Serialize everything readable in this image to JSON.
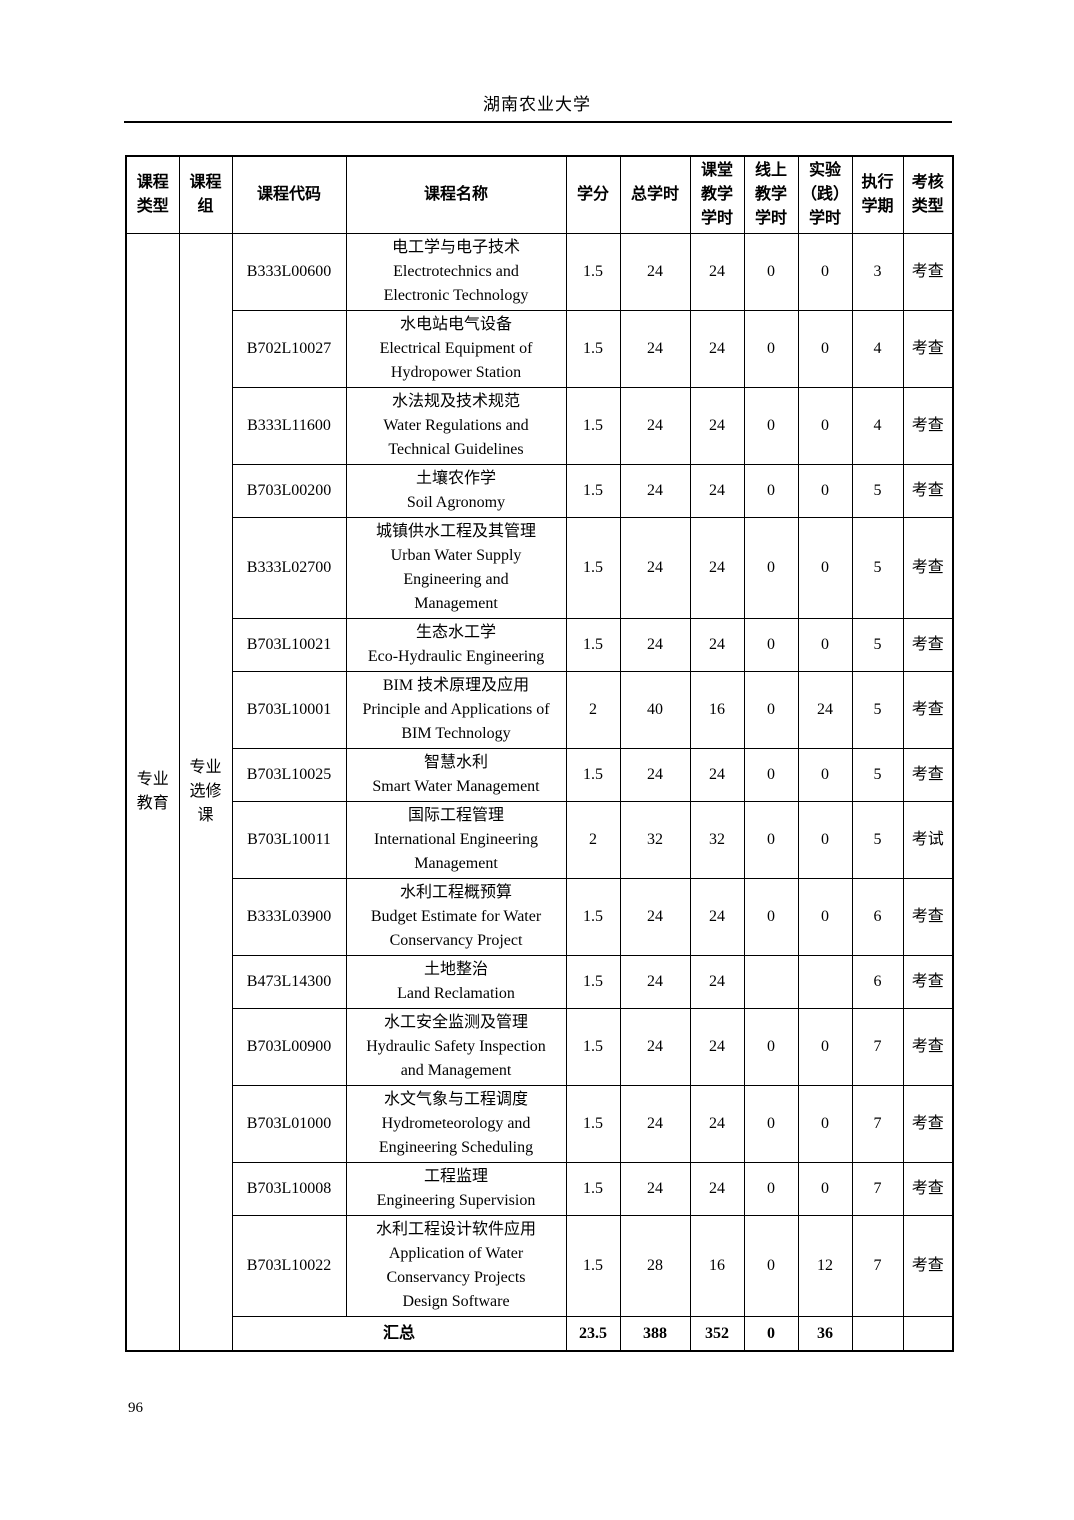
{
  "page": {
    "university_name": "湖南农业大学",
    "page_number": "96"
  },
  "table": {
    "headers": [
      "课程\n类型",
      "课程\n组",
      "课程代码",
      "课程名称",
      "学分",
      "总学时",
      "课堂\n教学\n学时",
      "线上\n教学\n学时",
      "实验\n（践）\n学时",
      "执行\n学期",
      "考核\n类型"
    ],
    "course_type_label": "专业\n教育",
    "course_group_label": "专业\n选修\n课",
    "rows": [
      {
        "code": "B333L00600",
        "name_zh": "电工学与电子技术",
        "name_en": "Electrotechnics and\nElectronic Technology",
        "credits": "1.5",
        "total_hours": "24",
        "classroom_hours": "24",
        "online_hours": "0",
        "lab_hours": "0",
        "semester": "3",
        "assessment": "考查"
      },
      {
        "code": "B702L10027",
        "name_zh": "水电站电气设备",
        "name_en": "Electrical Equipment of\nHydropower Station",
        "credits": "1.5",
        "total_hours": "24",
        "classroom_hours": "24",
        "online_hours": "0",
        "lab_hours": "0",
        "semester": "4",
        "assessment": "考查"
      },
      {
        "code": "B333L11600",
        "name_zh": "水法规及技术规范",
        "name_en": "Water Regulations and\nTechnical Guidelines",
        "credits": "1.5",
        "total_hours": "24",
        "classroom_hours": "24",
        "online_hours": "0",
        "lab_hours": "0",
        "semester": "4",
        "assessment": "考查"
      },
      {
        "code": "B703L00200",
        "name_zh": "土壤农作学",
        "name_en": "Soil Agronomy",
        "credits": "1.5",
        "total_hours": "24",
        "classroom_hours": "24",
        "online_hours": "0",
        "lab_hours": "0",
        "semester": "5",
        "assessment": "考查"
      },
      {
        "code": "B333L02700",
        "name_zh": "城镇供水工程及其管理",
        "name_en": "Urban Water Supply\nEngineering and\nManagement",
        "credits": "1.5",
        "total_hours": "24",
        "classroom_hours": "24",
        "online_hours": "0",
        "lab_hours": "0",
        "semester": "5",
        "assessment": "考查"
      },
      {
        "code": "B703L10021",
        "name_zh": "生态水工学",
        "name_en": "Eco-Hydraulic Engineering",
        "credits": "1.5",
        "total_hours": "24",
        "classroom_hours": "24",
        "online_hours": "0",
        "lab_hours": "0",
        "semester": "5",
        "assessment": "考查"
      },
      {
        "code": "B703L10001",
        "name_zh": "BIM 技术原理及应用",
        "name_en": "Principle and Applications of\nBIM Technology",
        "credits": "2",
        "total_hours": "40",
        "classroom_hours": "16",
        "online_hours": "0",
        "lab_hours": "24",
        "semester": "5",
        "assessment": "考查"
      },
      {
        "code": "B703L10025",
        "name_zh": "智慧水利",
        "name_en": "Smart Water Management",
        "credits": "1.5",
        "total_hours": "24",
        "classroom_hours": "24",
        "online_hours": "0",
        "lab_hours": "0",
        "semester": "5",
        "assessment": "考查"
      },
      {
        "code": "B703L10011",
        "name_zh": "国际工程管理",
        "name_en": "International Engineering\nManagement",
        "credits": "2",
        "total_hours": "32",
        "classroom_hours": "32",
        "online_hours": "0",
        "lab_hours": "0",
        "semester": "5",
        "assessment": "考试"
      },
      {
        "code": "B333L03900",
        "name_zh": "水利工程概预算",
        "name_en": "Budget Estimate for Water\nConservancy Project",
        "credits": "1.5",
        "total_hours": "24",
        "classroom_hours": "24",
        "online_hours": "0",
        "lab_hours": "0",
        "semester": "6",
        "assessment": "考查"
      },
      {
        "code": "B473L14300",
        "name_zh": "土地整治",
        "name_en": "Land Reclamation",
        "credits": "1.5",
        "total_hours": "24",
        "classroom_hours": "24",
        "online_hours": "",
        "lab_hours": "",
        "semester": "6",
        "assessment": "考查"
      },
      {
        "code": "B703L00900",
        "name_zh": "水工安全监测及管理",
        "name_en": "Hydraulic Safety Inspection\nand Management",
        "credits": "1.5",
        "total_hours": "24",
        "classroom_hours": "24",
        "online_hours": "0",
        "lab_hours": "0",
        "semester": "7",
        "assessment": "考查"
      },
      {
        "code": "B703L01000",
        "name_zh": "水文气象与工程调度",
        "name_en": "Hydrometeorology and\nEngineering Scheduling",
        "credits": "1.5",
        "total_hours": "24",
        "classroom_hours": "24",
        "online_hours": "0",
        "lab_hours": "0",
        "semester": "7",
        "assessment": "考查"
      },
      {
        "code": "B703L10008",
        "name_zh": "工程监理",
        "name_en": "Engineering Supervision",
        "credits": "1.5",
        "total_hours": "24",
        "classroom_hours": "24",
        "online_hours": "0",
        "lab_hours": "0",
        "semester": "7",
        "assessment": "考查"
      },
      {
        "code": "B703L10022",
        "name_zh": "水利工程设计软件应用",
        "name_en": "Application of Water\nConservancy Projects\nDesign Software",
        "credits": "1.5",
        "total_hours": "28",
        "classroom_hours": "16",
        "online_hours": "0",
        "lab_hours": "12",
        "semester": "7",
        "assessment": "考查"
      }
    ],
    "summary": {
      "label": "汇总",
      "credits": "23.5",
      "total_hours": "388",
      "classroom_hours": "352",
      "online_hours": "0",
      "lab_hours": "36",
      "semester": "",
      "assessment": ""
    }
  }
}
